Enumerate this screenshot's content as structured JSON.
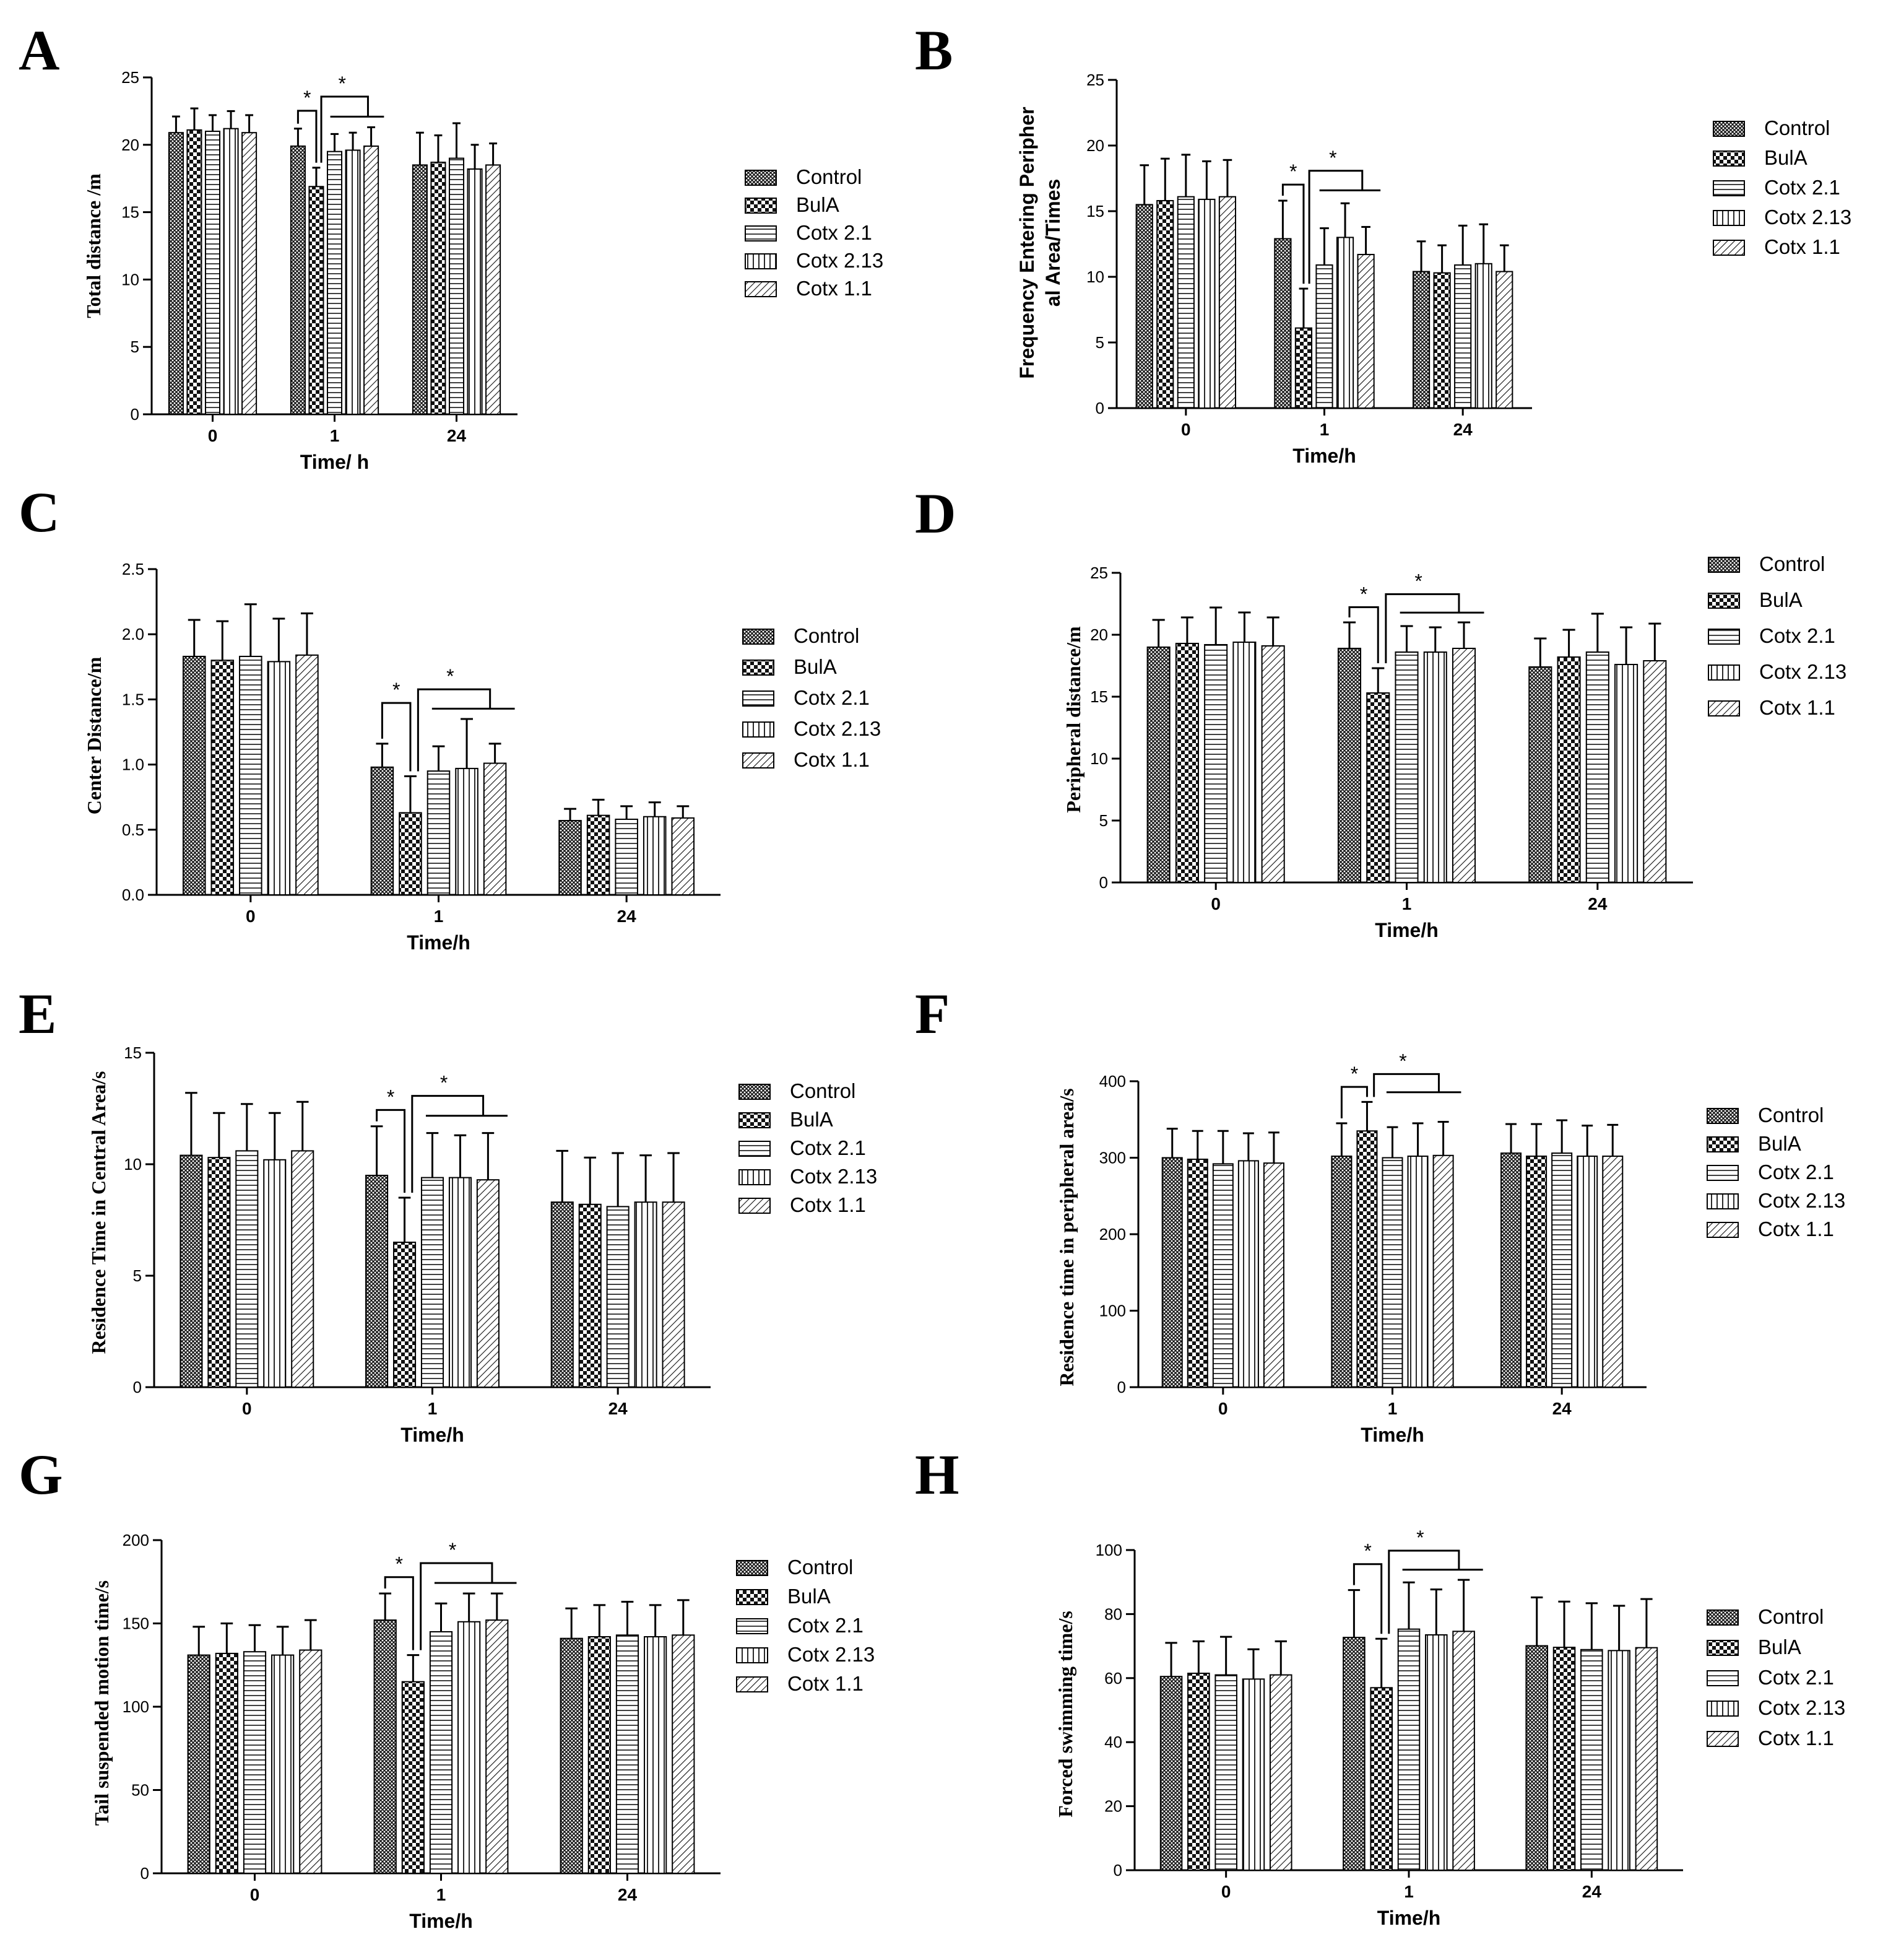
{
  "legend_labels": [
    "Control",
    "BulA",
    "Cotx 2.1",
    "Cotx 2.13",
    "Cotx 1.1"
  ],
  "significance_marker": "*",
  "chart_data": [
    {
      "panel": "A",
      "type": "bar",
      "ylabel": "Total distance /m",
      "xlabel": "Time/ h",
      "categories": [
        "0",
        "1",
        "24"
      ],
      "ylim": [
        0,
        25
      ],
      "yticks": [
        0,
        5,
        10,
        15,
        20,
        25
      ],
      "series": [
        {
          "name": "Control",
          "values": [
            20.9,
            19.9,
            18.5
          ],
          "errors": [
            1.2,
            1.3,
            2.4
          ]
        },
        {
          "name": "BulA",
          "values": [
            21.1,
            16.9,
            18.7
          ],
          "errors": [
            1.6,
            1.4,
            2.0
          ]
        },
        {
          "name": "Cotx 2.1",
          "values": [
            21.0,
            19.5,
            19.0
          ],
          "errors": [
            1.2,
            1.3,
            2.6
          ]
        },
        {
          "name": "Cotx 2.13",
          "values": [
            21.2,
            19.6,
            18.2
          ],
          "errors": [
            1.3,
            1.3,
            1.8
          ]
        },
        {
          "name": "Cotx 1.1",
          "values": [
            20.9,
            19.9,
            18.5
          ],
          "errors": [
            1.3,
            1.4,
            1.6
          ]
        }
      ]
    },
    {
      "panel": "B",
      "type": "bar",
      "ylabel_lines": [
        "Frequency Entering Peripher",
        "al Area/Times"
      ],
      "xlabel": "Time/h",
      "categories": [
        "0",
        "1",
        "24"
      ],
      "ylim": [
        0,
        25
      ],
      "yticks": [
        0,
        5,
        10,
        15,
        20,
        25
      ],
      "series": [
        {
          "name": "Control",
          "values": [
            15.5,
            12.9,
            10.4
          ],
          "errors": [
            3.0,
            2.9,
            2.3
          ]
        },
        {
          "name": "BulA",
          "values": [
            15.8,
            6.1,
            10.3
          ],
          "errors": [
            3.2,
            3.0,
            2.1
          ]
        },
        {
          "name": "Cotx 2.1",
          "values": [
            16.1,
            10.9,
            10.9
          ],
          "errors": [
            3.2,
            2.8,
            3.0
          ]
        },
        {
          "name": "Cotx 2.13",
          "values": [
            15.9,
            13.0,
            11.0
          ],
          "errors": [
            2.9,
            2.6,
            3.0
          ]
        },
        {
          "name": "Cotx 1.1",
          "values": [
            16.1,
            11.7,
            10.4
          ],
          "errors": [
            2.8,
            2.1,
            2.0
          ]
        }
      ]
    },
    {
      "panel": "C",
      "type": "bar",
      "ylabel": "Center Distance/m",
      "xlabel": "Time/h",
      "categories": [
        "0",
        "1",
        "24"
      ],
      "ylim": [
        0,
        2.5
      ],
      "yticks": [
        "0.0",
        "0.5",
        "1.0",
        "1.5",
        "2.0",
        "2.5"
      ],
      "series": [
        {
          "name": "Control",
          "values": [
            1.83,
            0.98,
            0.57
          ],
          "errors": [
            0.28,
            0.18,
            0.09
          ]
        },
        {
          "name": "BulA",
          "values": [
            1.8,
            0.63,
            0.61
          ],
          "errors": [
            0.3,
            0.28,
            0.12
          ]
        },
        {
          "name": "Cotx 2.1",
          "values": [
            1.83,
            0.95,
            0.58
          ],
          "errors": [
            0.4,
            0.19,
            0.1
          ]
        },
        {
          "name": "Cotx 2.13",
          "values": [
            1.79,
            0.97,
            0.6
          ],
          "errors": [
            0.33,
            0.38,
            0.11
          ]
        },
        {
          "name": "Cotx 1.1",
          "values": [
            1.84,
            1.01,
            0.59
          ],
          "errors": [
            0.32,
            0.15,
            0.09
          ]
        }
      ]
    },
    {
      "panel": "D",
      "type": "bar",
      "ylabel": "Peripheral distance/m",
      "xlabel": "Time/h",
      "categories": [
        "0",
        "1",
        "24"
      ],
      "ylim": [
        0,
        25
      ],
      "yticks": [
        0,
        5,
        10,
        15,
        20,
        25
      ],
      "series": [
        {
          "name": "Control",
          "values": [
            19.0,
            18.9,
            17.4
          ],
          "errors": [
            2.2,
            2.1,
            2.3
          ]
        },
        {
          "name": "BulA",
          "values": [
            19.3,
            15.3,
            18.2
          ],
          "errors": [
            2.1,
            2.0,
            2.2
          ]
        },
        {
          "name": "Cotx 2.1",
          "values": [
            19.2,
            18.6,
            18.6
          ],
          "errors": [
            3.0,
            2.1,
            3.1
          ]
        },
        {
          "name": "Cotx 2.13",
          "values": [
            19.4,
            18.6,
            17.6
          ],
          "errors": [
            2.4,
            2.0,
            3.0
          ]
        },
        {
          "name": "Cotx 1.1",
          "values": [
            19.1,
            18.9,
            17.9
          ],
          "errors": [
            2.3,
            2.1,
            3.0
          ]
        }
      ]
    },
    {
      "panel": "E",
      "type": "bar",
      "ylabel": "Residence Time in Central Area/s",
      "xlabel": "Time/h",
      "categories": [
        "0",
        "1",
        "24"
      ],
      "ylim": [
        0,
        15
      ],
      "yticks": [
        0,
        5,
        10,
        15
      ],
      "series": [
        {
          "name": "Control",
          "values": [
            10.4,
            9.5,
            8.3
          ],
          "errors": [
            2.8,
            2.2,
            2.3
          ]
        },
        {
          "name": "BulA",
          "values": [
            10.3,
            6.5,
            8.2
          ],
          "errors": [
            2.0,
            2.0,
            2.1
          ]
        },
        {
          "name": "Cotx 2.1",
          "values": [
            10.6,
            9.4,
            8.1
          ],
          "errors": [
            2.1,
            2.0,
            2.4
          ]
        },
        {
          "name": "Cotx 2.13",
          "values": [
            10.2,
            9.4,
            8.3
          ],
          "errors": [
            2.1,
            1.9,
            2.1
          ]
        },
        {
          "name": "Cotx 1.1",
          "values": [
            10.6,
            9.3,
            8.3
          ],
          "errors": [
            2.2,
            2.1,
            2.2
          ]
        }
      ]
    },
    {
      "panel": "F",
      "type": "bar",
      "ylabel": "Residence time in peripheral area/s",
      "xlabel": "Time/h",
      "categories": [
        "0",
        "1",
        "24"
      ],
      "ylim": [
        0,
        400
      ],
      "yticks": [
        0,
        100,
        200,
        300,
        400
      ],
      "series": [
        {
          "name": "Control",
          "values": [
            300,
            302,
            306
          ],
          "errors": [
            38,
            43,
            38
          ]
        },
        {
          "name": "BulA",
          "values": [
            298,
            335,
            302
          ],
          "errors": [
            37,
            38,
            42
          ]
        },
        {
          "name": "Cotx 2.1",
          "values": [
            292,
            300,
            306
          ],
          "errors": [
            43,
            40,
            43
          ]
        },
        {
          "name": "Cotx 2.13",
          "values": [
            296,
            302,
            302
          ],
          "errors": [
            36,
            43,
            40
          ]
        },
        {
          "name": "Cotx 1.1",
          "values": [
            293,
            303,
            302
          ],
          "errors": [
            40,
            44,
            41
          ]
        }
      ]
    },
    {
      "panel": "G",
      "type": "bar",
      "ylabel": "Tail suspended motion time/s",
      "xlabel": "Time/h",
      "categories": [
        "0",
        "1",
        "24"
      ],
      "ylim": [
        0,
        200
      ],
      "yticks": [
        0,
        50,
        100,
        150,
        200
      ],
      "series": [
        {
          "name": "Control",
          "values": [
            131,
            152,
            141
          ],
          "errors": [
            17,
            16,
            18
          ]
        },
        {
          "name": "BulA",
          "values": [
            132,
            115,
            142
          ],
          "errors": [
            18,
            16,
            19
          ]
        },
        {
          "name": "Cotx 2.1",
          "values": [
            133,
            145,
            143
          ],
          "errors": [
            16,
            17,
            20
          ]
        },
        {
          "name": "Cotx 2.13",
          "values": [
            131,
            151,
            142
          ],
          "errors": [
            17,
            17,
            19
          ]
        },
        {
          "name": "Cotx 1.1",
          "values": [
            134,
            152,
            143
          ],
          "errors": [
            18,
            16,
            21
          ]
        }
      ]
    },
    {
      "panel": "H",
      "type": "bar",
      "ylabel": "Forced swimming time/s",
      "xlabel": "Time/h",
      "categories": [
        "0",
        "1",
        "24"
      ],
      "ylim": [
        0,
        100
      ],
      "yticks": [
        0,
        20,
        40,
        60,
        80,
        100
      ],
      "series": [
        {
          "name": "Control",
          "values": [
            60.5,
            72.7,
            70.1
          ],
          "errors": [
            10.5,
            14.8,
            15.1
          ]
        },
        {
          "name": "BulA",
          "values": [
            61.5,
            57.0,
            69.6
          ],
          "errors": [
            10.0,
            15.3,
            14.3
          ]
        },
        {
          "name": "Cotx 2.1",
          "values": [
            61.0,
            75.3,
            68.9
          ],
          "errors": [
            11.9,
            14.6,
            14.5
          ]
        },
        {
          "name": "Cotx 2.13",
          "values": [
            59.7,
            73.5,
            68.6
          ],
          "errors": [
            9.3,
            14.2,
            14.0
          ]
        },
        {
          "name": "Cotx 1.1",
          "values": [
            61.0,
            74.6,
            69.5
          ],
          "errors": [
            10.5,
            16.1,
            15.2
          ]
        }
      ]
    }
  ]
}
